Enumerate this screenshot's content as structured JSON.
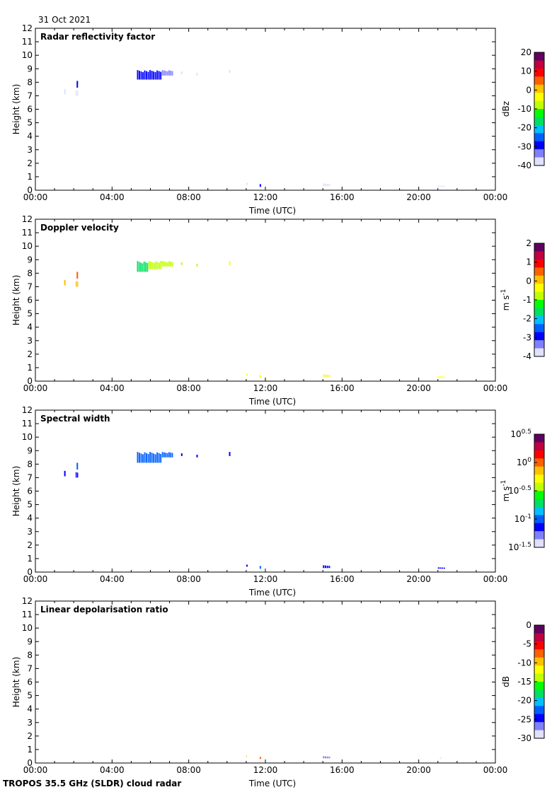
{
  "header": {
    "date": "31 Oct 2021"
  },
  "footer": {
    "instrument": "TROPOS 35.5 GHz (SLDR) cloud radar"
  },
  "chart_data": [
    {
      "type": "heatmap",
      "title": "Radar reflectivity factor",
      "xlabel": "Time (UTC)",
      "ylabel": "Height (km)",
      "xlim": [
        0,
        24
      ],
      "ylim": [
        0,
        12
      ],
      "x_ticks": [
        "00:00",
        "04:00",
        "08:00",
        "12:00",
        "16:00",
        "20:00",
        "00:00"
      ],
      "y_ticks": [
        0,
        1,
        2,
        3,
        4,
        5,
        6,
        7,
        8,
        9,
        10,
        11,
        12
      ],
      "colorbar": {
        "unit": "dBz",
        "range": [
          -40,
          20
        ],
        "ticks": [
          "20",
          "10",
          "0",
          "-10",
          "-20",
          "-30",
          "-40"
        ]
      },
      "echoes": [
        {
          "t0": 1.5,
          "t1": 1.6,
          "h0": 7.1,
          "h1": 7.5,
          "v": -38
        },
        {
          "t0": 2.1,
          "t1": 2.25,
          "h0": 7.0,
          "h1": 7.4,
          "v": -38
        },
        {
          "t0": 2.15,
          "t1": 2.25,
          "h0": 7.6,
          "h1": 8.1,
          "v": -30
        },
        {
          "t0": 5.3,
          "t1": 6.6,
          "h0": 8.2,
          "h1": 8.9,
          "v": -30
        },
        {
          "t0": 6.6,
          "t1": 7.2,
          "h0": 8.5,
          "h1": 8.9,
          "v": -33
        },
        {
          "t0": 7.6,
          "t1": 7.7,
          "h0": 8.6,
          "h1": 8.8,
          "v": -36
        },
        {
          "t0": 8.4,
          "t1": 8.5,
          "h0": 8.5,
          "h1": 8.7,
          "v": -36
        },
        {
          "t0": 10.1,
          "t1": 10.2,
          "h0": 8.7,
          "h1": 8.9,
          "v": -38
        },
        {
          "t0": 11.0,
          "t1": 11.1,
          "h0": 0.4,
          "h1": 0.55,
          "v": -38
        },
        {
          "t0": 11.7,
          "t1": 11.8,
          "h0": 0.25,
          "h1": 0.45,
          "v": -30
        },
        {
          "t0": 15.0,
          "t1": 15.4,
          "h0": 0.3,
          "h1": 0.5,
          "v": -38
        },
        {
          "t0": 21.0,
          "t1": 21.4,
          "h0": 0.25,
          "h1": 0.35,
          "v": -40
        }
      ]
    },
    {
      "type": "heatmap",
      "title": "Doppler velocity",
      "xlabel": "Time (UTC)",
      "ylabel": "Height (km)",
      "xlim": [
        0,
        24
      ],
      "ylim": [
        0,
        12
      ],
      "x_ticks": [
        "00:00",
        "04:00",
        "08:00",
        "12:00",
        "16:00",
        "20:00",
        "00:00"
      ],
      "y_ticks": [
        0,
        1,
        2,
        3,
        4,
        5,
        6,
        7,
        8,
        9,
        10,
        11,
        12
      ],
      "colorbar": {
        "unit": "m s",
        "unit_sup": "-1",
        "range": [
          -4,
          2
        ],
        "ticks": [
          "2",
          "1",
          "0",
          "-1",
          "-2",
          "-3",
          "-4"
        ]
      },
      "echoes": [
        {
          "t0": 1.5,
          "t1": 1.6,
          "h0": 7.1,
          "h1": 7.5,
          "v": 0.0
        },
        {
          "t0": 2.1,
          "t1": 2.25,
          "h0": 7.0,
          "h1": 7.4,
          "v": 0.0
        },
        {
          "t0": 2.15,
          "t1": 2.25,
          "h0": 7.6,
          "h1": 8.1,
          "v": 0.5
        },
        {
          "t0": 5.3,
          "t1": 5.9,
          "h0": 8.1,
          "h1": 8.9,
          "v": -1.8
        },
        {
          "t0": 5.9,
          "t1": 6.6,
          "h0": 8.3,
          "h1": 8.9,
          "v": -1.0
        },
        {
          "t0": 6.6,
          "t1": 7.2,
          "h0": 8.5,
          "h1": 8.9,
          "v": -0.9
        },
        {
          "t0": 7.6,
          "t1": 7.7,
          "h0": 8.6,
          "h1": 8.8,
          "v": -0.8
        },
        {
          "t0": 8.4,
          "t1": 8.5,
          "h0": 8.5,
          "h1": 8.7,
          "v": -0.8
        },
        {
          "t0": 10.1,
          "t1": 10.2,
          "h0": 8.6,
          "h1": 8.9,
          "v": -0.5
        },
        {
          "t0": 11.0,
          "t1": 11.1,
          "h0": 0.4,
          "h1": 0.55,
          "v": -0.3
        },
        {
          "t0": 11.7,
          "t1": 11.8,
          "h0": 0.25,
          "h1": 0.45,
          "v": -0.3
        },
        {
          "t0": 15.0,
          "t1": 15.4,
          "h0": 0.3,
          "h1": 0.5,
          "v": -0.3
        },
        {
          "t0": 21.0,
          "t1": 21.4,
          "h0": 0.25,
          "h1": 0.35,
          "v": -0.3
        }
      ]
    },
    {
      "type": "heatmap",
      "title": "Spectral width",
      "xlabel": "Time (UTC)",
      "ylabel": "Height (km)",
      "xlim": [
        0,
        24
      ],
      "ylim": [
        0,
        12
      ],
      "x_ticks": [
        "00:00",
        "04:00",
        "08:00",
        "12:00",
        "16:00",
        "20:00",
        "00:00"
      ],
      "y_ticks": [
        0,
        1,
        2,
        3,
        4,
        5,
        6,
        7,
        8,
        9,
        10,
        11,
        12
      ],
      "colorbar": {
        "unit": "m s",
        "unit_sup": "-1",
        "scale": "log10",
        "range": [
          -1.5,
          0.5
        ],
        "ticks": [
          {
            "base": "10",
            "exp": "0.5"
          },
          {
            "base": "10",
            "exp": "0"
          },
          {
            "base": "10",
            "exp": "-0.5"
          },
          {
            "base": "10",
            "exp": "-1"
          },
          {
            "base": "10",
            "exp": "-1.5"
          }
        ]
      },
      "echoes": [
        {
          "t0": 1.5,
          "t1": 1.6,
          "h0": 7.1,
          "h1": 7.5,
          "v": -1.2
        },
        {
          "t0": 2.1,
          "t1": 2.25,
          "h0": 7.0,
          "h1": 7.4,
          "v": -1.2
        },
        {
          "t0": 2.15,
          "t1": 2.25,
          "h0": 7.6,
          "h1": 8.1,
          "v": -1.0
        },
        {
          "t0": 5.3,
          "t1": 6.6,
          "h0": 8.1,
          "h1": 8.9,
          "v": -1.0
        },
        {
          "t0": 6.6,
          "t1": 7.2,
          "h0": 8.5,
          "h1": 8.9,
          "v": -1.0
        },
        {
          "t0": 7.6,
          "t1": 7.7,
          "h0": 8.6,
          "h1": 8.8,
          "v": -1.1
        },
        {
          "t0": 8.4,
          "t1": 8.5,
          "h0": 8.5,
          "h1": 8.7,
          "v": -1.1
        },
        {
          "t0": 10.1,
          "t1": 10.2,
          "h0": 8.6,
          "h1": 8.9,
          "v": -1.1
        },
        {
          "t0": 11.0,
          "t1": 11.1,
          "h0": 0.4,
          "h1": 0.55,
          "v": -1.2
        },
        {
          "t0": 11.7,
          "t1": 11.8,
          "h0": 0.25,
          "h1": 0.45,
          "v": -1.0
        },
        {
          "t0": 15.0,
          "t1": 15.4,
          "h0": 0.3,
          "h1": 0.5,
          "v": -1.1
        },
        {
          "t0": 21.0,
          "t1": 21.4,
          "h0": 0.25,
          "h1": 0.35,
          "v": -1.2
        }
      ]
    },
    {
      "type": "heatmap",
      "title": "Linear depolarisation ratio",
      "xlabel": "Time (UTC)",
      "ylabel": "Height (km)",
      "xlim": [
        0,
        24
      ],
      "ylim": [
        0,
        12
      ],
      "x_ticks": [
        "00:00",
        "04:00",
        "08:00",
        "12:00",
        "16:00",
        "20:00",
        "00:00"
      ],
      "y_ticks": [
        0,
        1,
        2,
        3,
        4,
        5,
        6,
        7,
        8,
        9,
        10,
        11,
        12
      ],
      "colorbar": {
        "unit": "dB",
        "range": [
          -30,
          0
        ],
        "ticks": [
          "0",
          "-5",
          "-10",
          "-15",
          "-20",
          "-25",
          "-30"
        ]
      },
      "echoes": [
        {
          "t0": 11.0,
          "t1": 11.05,
          "h0": 0.45,
          "h1": 0.55,
          "v": -10
        },
        {
          "t0": 11.7,
          "t1": 11.8,
          "h0": 0.3,
          "h1": 0.45,
          "v": -8
        },
        {
          "t0": 15.0,
          "t1": 15.4,
          "h0": 0.35,
          "h1": 0.5,
          "v": -27
        },
        {
          "t0": 21.1,
          "t1": 21.2,
          "h0": 0.3,
          "h1": 0.4,
          "v": -28
        }
      ]
    }
  ],
  "colors": {
    "palette": [
      "#e0e0ff",
      "#8080ff",
      "#0000ff",
      "#0060ff",
      "#00c0ff",
      "#00e060",
      "#00ff00",
      "#c0ff00",
      "#ffff00",
      "#ffc000",
      "#ff6000",
      "#ff0000",
      "#c00040",
      "#600060"
    ]
  }
}
